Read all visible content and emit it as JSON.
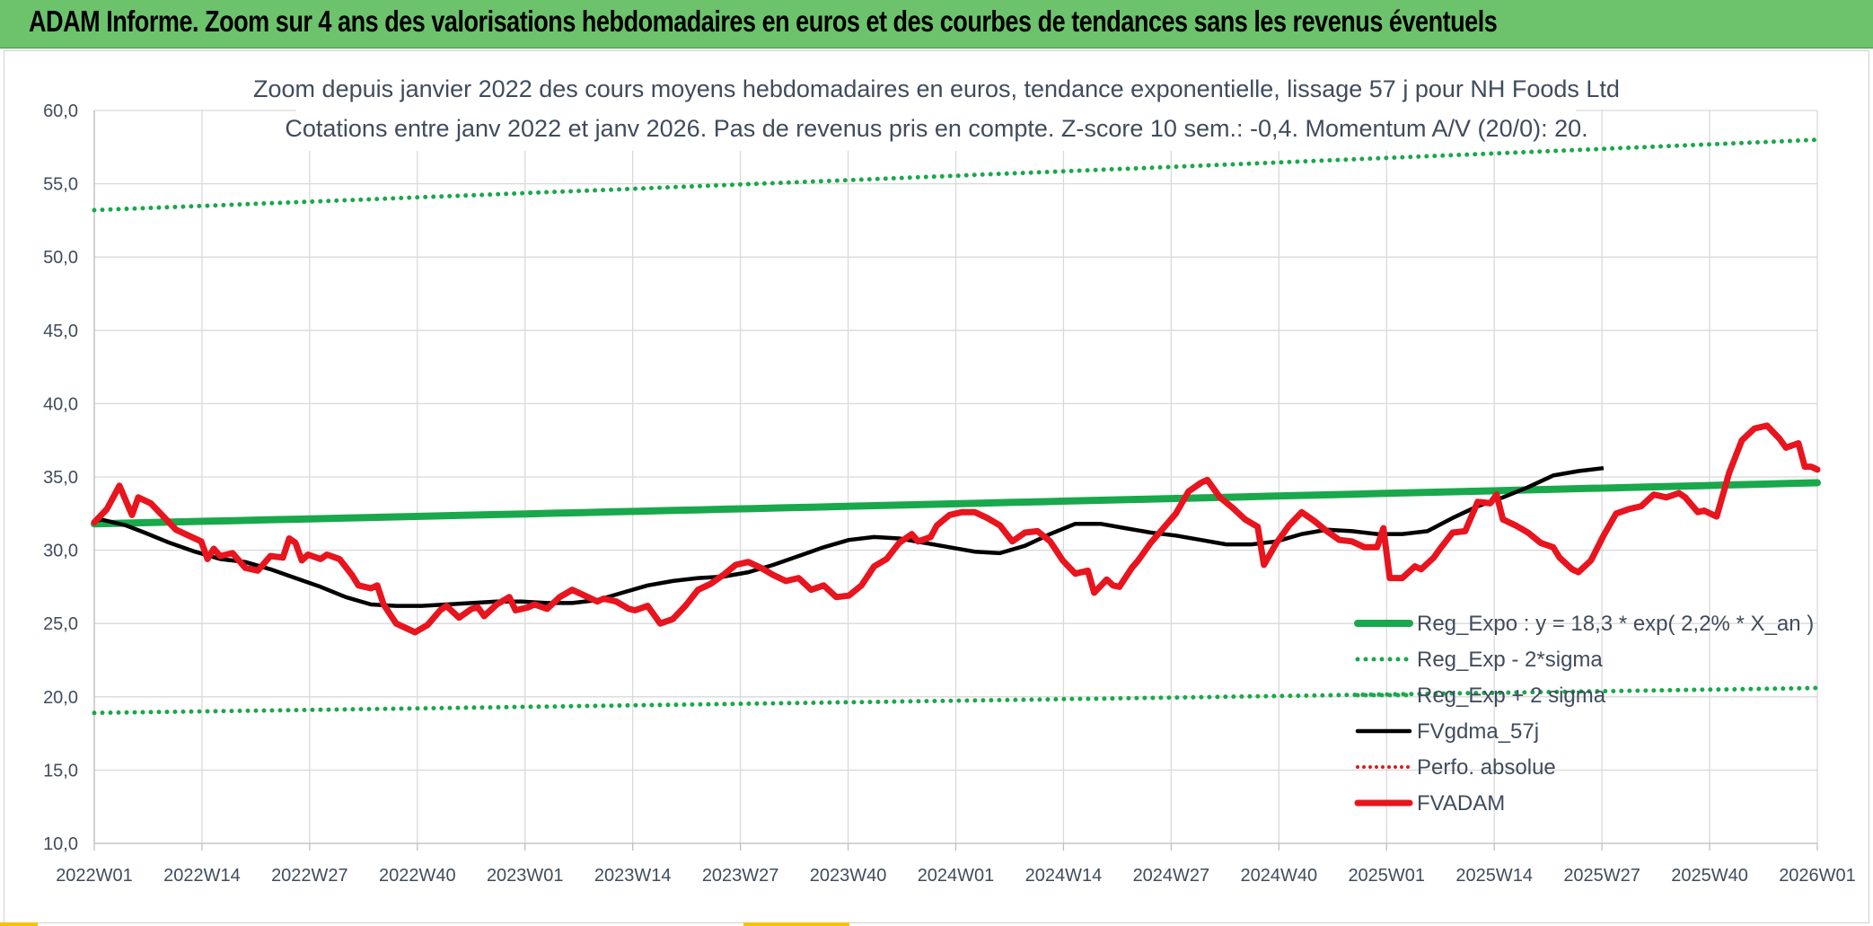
{
  "banner": {
    "title": "ADAM Informe. Zoom sur 4 ans des valorisations hebdomadaires en euros et des courbes de tendances sans les revenus éventuels"
  },
  "chart_data": {
    "type": "line",
    "title_line1": "Zoom depuis janvier 2022 des cours moyens hebdomadaires en euros, tendance exponentielle, lissage 57 j pour NH Foods Ltd",
    "title_line2": "Cotations entre janv 2022 et janv 2026. Pas de revenus pris en compte. Z-score 10 sem.: -0,4. Momentum A/V (20/0): 20.",
    "xlabels": [
      "2022W01",
      "2022W14",
      "2022W27",
      "2022W40",
      "2023W01",
      "2023W14",
      "2023W27",
      "2023W40",
      "2024W01",
      "2024W14",
      "2024W27",
      "2024W40",
      "2025W01",
      "2025W14",
      "2025W27",
      "2025W40",
      "2026W01"
    ],
    "ylim": [
      10,
      60
    ],
    "yticks": [
      "10,0",
      "15,0",
      "20,0",
      "25,0",
      "30,0",
      "35,0",
      "40,0",
      "45,0",
      "50,0",
      "55,0",
      "60,0"
    ],
    "grid": true,
    "legend_position": "bottom-right inside plot",
    "colors": {
      "green": "#19a84b",
      "black": "#000000",
      "red": "#e8141e"
    },
    "series": [
      {
        "name": "Reg_Expo : y = 18,3 * exp( 2,2% *  X_an )",
        "style": "solid",
        "color": "#19a84b",
        "start": 31.8,
        "end": 34.6
      },
      {
        "name": "Reg_Exp - 2*sigma",
        "style": "dotted",
        "color": "#19a84b",
        "start": 18.9,
        "end": 20.6
      },
      {
        "name": "Reg_Exp + 2 sigma",
        "style": "dotted",
        "color": "#19a84b",
        "start": 53.2,
        "end": 58.0
      },
      {
        "name": "FVgdma_57j",
        "style": "solid",
        "color": "#000000",
        "points": [
          [
            0,
            31.9
          ],
          [
            1,
            32.1
          ],
          [
            3,
            31.9
          ],
          [
            5,
            31.7
          ],
          [
            8,
            31.2
          ],
          [
            12,
            30.5
          ],
          [
            16,
            29.9
          ],
          [
            20,
            29.4
          ],
          [
            24,
            29.2
          ],
          [
            28,
            28.7
          ],
          [
            32,
            28.1
          ],
          [
            36,
            27.5
          ],
          [
            40,
            26.8
          ],
          [
            44,
            26.3
          ],
          [
            48,
            26.2
          ],
          [
            52,
            26.2
          ],
          [
            56,
            26.3
          ],
          [
            60,
            26.4
          ],
          [
            64,
            26.5
          ],
          [
            68,
            26.5
          ],
          [
            72,
            26.4
          ],
          [
            76,
            26.4
          ],
          [
            80,
            26.6
          ],
          [
            84,
            27.1
          ],
          [
            88,
            27.6
          ],
          [
            92,
            27.9
          ],
          [
            96,
            28.1
          ],
          [
            100,
            28.2
          ],
          [
            104,
            28.5
          ],
          [
            108,
            29.0
          ],
          [
            112,
            29.6
          ],
          [
            116,
            30.2
          ],
          [
            120,
            30.7
          ],
          [
            124,
            30.9
          ],
          [
            128,
            30.8
          ],
          [
            132,
            30.5
          ],
          [
            136,
            30.2
          ],
          [
            140,
            29.9
          ],
          [
            144,
            29.8
          ],
          [
            148,
            30.3
          ],
          [
            152,
            31.1
          ],
          [
            156,
            31.8
          ],
          [
            160,
            31.8
          ],
          [
            164,
            31.5
          ],
          [
            168,
            31.2
          ],
          [
            172,
            31.0
          ],
          [
            176,
            30.7
          ],
          [
            180,
            30.4
          ],
          [
            184,
            30.4
          ],
          [
            188,
            30.6
          ],
          [
            192,
            31.1
          ],
          [
            196,
            31.4
          ],
          [
            200,
            31.3
          ],
          [
            204,
            31.1
          ],
          [
            208,
            31.1
          ],
          [
            212,
            31.3
          ],
          [
            216,
            32.2
          ],
          [
            220,
            33.0
          ],
          [
            224,
            33.6
          ],
          [
            228,
            34.3
          ],
          [
            232,
            35.1
          ],
          [
            236,
            35.4
          ],
          [
            240,
            35.6
          ]
        ]
      },
      {
        "name": "Perfo. absolue",
        "style": "dotted",
        "color": "#e8141e"
      },
      {
        "name": "FVADAM",
        "style": "solid",
        "color": "#e8141e",
        "points": [
          [
            0,
            31.9
          ],
          [
            2,
            32.8
          ],
          [
            4,
            34.4
          ],
          [
            6,
            32.4
          ],
          [
            7,
            33.6
          ],
          [
            9,
            33.2
          ],
          [
            11,
            32.3
          ],
          [
            13,
            31.4
          ],
          [
            15,
            31.0
          ],
          [
            17,
            30.6
          ],
          [
            18,
            29.4
          ],
          [
            19,
            30.1
          ],
          [
            20,
            29.6
          ],
          [
            22,
            29.8
          ],
          [
            24,
            28.8
          ],
          [
            26,
            28.6
          ],
          [
            28,
            29.6
          ],
          [
            30,
            29.5
          ],
          [
            31,
            30.8
          ],
          [
            32,
            30.5
          ],
          [
            33,
            29.3
          ],
          [
            34,
            29.7
          ],
          [
            36,
            29.4
          ],
          [
            37,
            29.7
          ],
          [
            39,
            29.4
          ],
          [
            41,
            28.3
          ],
          [
            42,
            27.6
          ],
          [
            44,
            27.4
          ],
          [
            45,
            27.6
          ],
          [
            46,
            26.3
          ],
          [
            48,
            25.0
          ],
          [
            50,
            24.6
          ],
          [
            51,
            24.4
          ],
          [
            53,
            24.9
          ],
          [
            55,
            25.9
          ],
          [
            56,
            26.2
          ],
          [
            58,
            25.4
          ],
          [
            60,
            26.0
          ],
          [
            61,
            26.1
          ],
          [
            62,
            25.5
          ],
          [
            64,
            26.3
          ],
          [
            66,
            26.8
          ],
          [
            67,
            25.9
          ],
          [
            69,
            26.1
          ],
          [
            70,
            26.3
          ],
          [
            72,
            26.0
          ],
          [
            74,
            26.8
          ],
          [
            76,
            27.3
          ],
          [
            78,
            26.9
          ],
          [
            80,
            26.5
          ],
          [
            81,
            26.7
          ],
          [
            83,
            26.5
          ],
          [
            85,
            26.0
          ],
          [
            86,
            25.9
          ],
          [
            88,
            26.2
          ],
          [
            90,
            25.0
          ],
          [
            92,
            25.3
          ],
          [
            94,
            26.2
          ],
          [
            96,
            27.3
          ],
          [
            98,
            27.7
          ],
          [
            100,
            28.3
          ],
          [
            102,
            29.0
          ],
          [
            104,
            29.2
          ],
          [
            106,
            28.8
          ],
          [
            108,
            28.3
          ],
          [
            110,
            27.9
          ],
          [
            112,
            28.1
          ],
          [
            114,
            27.3
          ],
          [
            116,
            27.6
          ],
          [
            118,
            26.8
          ],
          [
            120,
            26.9
          ],
          [
            122,
            27.6
          ],
          [
            124,
            28.9
          ],
          [
            126,
            29.4
          ],
          [
            128,
            30.5
          ],
          [
            130,
            31.1
          ],
          [
            131,
            30.6
          ],
          [
            133,
            30.9
          ],
          [
            134,
            31.7
          ],
          [
            136,
            32.4
          ],
          [
            138,
            32.6
          ],
          [
            140,
            32.6
          ],
          [
            142,
            32.2
          ],
          [
            144,
            31.7
          ],
          [
            146,
            30.6
          ],
          [
            148,
            31.2
          ],
          [
            150,
            31.3
          ],
          [
            152,
            30.6
          ],
          [
            154,
            29.3
          ],
          [
            156,
            28.4
          ],
          [
            158,
            28.6
          ],
          [
            159,
            27.1
          ],
          [
            161,
            28.0
          ],
          [
            162,
            27.6
          ],
          [
            163,
            27.5
          ],
          [
            165,
            28.8
          ],
          [
            166,
            29.3
          ],
          [
            168,
            30.5
          ],
          [
            170,
            31.5
          ],
          [
            172,
            32.5
          ],
          [
            174,
            34.0
          ],
          [
            176,
            34.6
          ],
          [
            177,
            34.8
          ],
          [
            179,
            33.6
          ],
          [
            181,
            32.9
          ],
          [
            183,
            32.1
          ],
          [
            185,
            31.6
          ],
          [
            186,
            29.0
          ],
          [
            188,
            30.5
          ],
          [
            190,
            31.7
          ],
          [
            192,
            32.6
          ],
          [
            194,
            32.0
          ],
          [
            196,
            31.3
          ],
          [
            198,
            30.7
          ],
          [
            200,
            30.6
          ],
          [
            202,
            30.2
          ],
          [
            204,
            30.2
          ],
          [
            205,
            31.5
          ],
          [
            206,
            28.1
          ],
          [
            208,
            28.1
          ],
          [
            210,
            28.9
          ],
          [
            211,
            28.7
          ],
          [
            213,
            29.5
          ],
          [
            214,
            30.1
          ],
          [
            216,
            31.2
          ],
          [
            218,
            31.3
          ],
          [
            220,
            33.3
          ],
          [
            222,
            33.2
          ],
          [
            223,
            33.8
          ],
          [
            224,
            32.1
          ],
          [
            226,
            31.7
          ],
          [
            228,
            31.2
          ],
          [
            230,
            30.5
          ],
          [
            232,
            30.2
          ],
          [
            233,
            29.5
          ],
          [
            235,
            28.7
          ],
          [
            236,
            28.5
          ],
          [
            238,
            29.3
          ],
          [
            240,
            31.0
          ],
          [
            242,
            32.5
          ],
          [
            244,
            32.8
          ],
          [
            246,
            33.0
          ],
          [
            248,
            33.8
          ],
          [
            250,
            33.6
          ],
          [
            252,
            33.9
          ],
          [
            253,
            33.6
          ],
          [
            255,
            32.6
          ],
          [
            256,
            32.7
          ],
          [
            258,
            32.3
          ],
          [
            260,
            35.3
          ],
          [
            262,
            37.5
          ],
          [
            264,
            38.3
          ],
          [
            266,
            38.5
          ],
          [
            268,
            37.6
          ],
          [
            269,
            37.0
          ],
          [
            271,
            37.3
          ],
          [
            272,
            35.7
          ],
          [
            273,
            35.7
          ],
          [
            274,
            35.5
          ]
        ]
      }
    ]
  }
}
